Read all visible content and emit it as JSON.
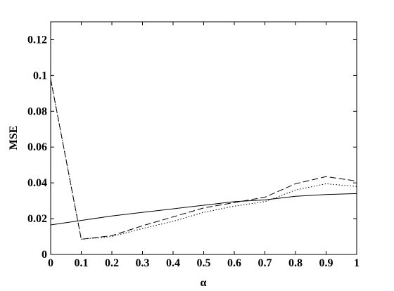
{
  "chart_data": {
    "type": "line",
    "x_label": "α",
    "y_label": "MSE",
    "x": [
      0,
      0.1,
      0.2,
      0.3,
      0.4,
      0.5,
      0.6,
      0.7,
      0.8,
      0.9,
      1
    ],
    "series": [
      {
        "color": "#000000",
        "dash": "solid",
        "values": [
          0.0165,
          0.019,
          0.0215,
          0.0235,
          0.0255,
          0.0275,
          0.0295,
          0.0305,
          0.0325,
          0.0335,
          0.034
        ]
      },
      {
        "color": "#000000",
        "dash": "dashed",
        "values": [
          0.098,
          0.0085,
          0.0105,
          0.016,
          0.021,
          0.026,
          0.029,
          0.032,
          0.0395,
          0.0435,
          0.041
        ]
      },
      {
        "color": "#000000",
        "dash": "dotted",
        "values": [
          0.098,
          0.0085,
          0.01,
          0.0145,
          0.0185,
          0.0235,
          0.027,
          0.0295,
          0.036,
          0.0395,
          0.038
        ]
      }
    ],
    "xlim": [
      0,
      1
    ],
    "ylim": [
      0,
      0.13
    ],
    "xticks": [
      0,
      0.1,
      0.2,
      0.3,
      0.4,
      0.5,
      0.6,
      0.7,
      0.8,
      0.9,
      1
    ],
    "yticks": [
      0,
      0.02,
      0.04,
      0.06,
      0.08,
      0.1,
      0.12
    ],
    "grid": false
  }
}
